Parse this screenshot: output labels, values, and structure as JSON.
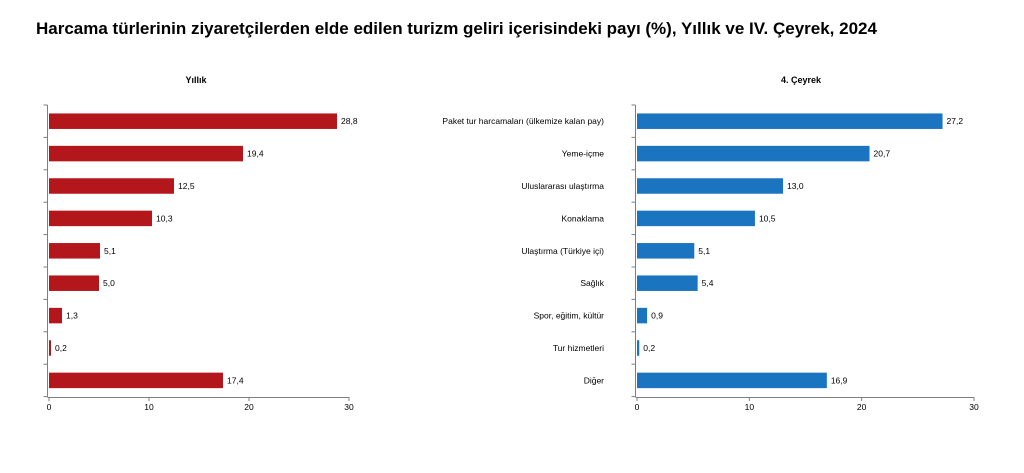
{
  "page": {
    "title": "Harcama türlerinin ziyaretçilerden elde edilen turizm geliri içerisindeki payı (%), Yıllık ve IV. Çeyrek, 2024"
  },
  "chart_data": [
    {
      "type": "bar",
      "orientation": "horizontal",
      "title": "Yıllık",
      "categories": [
        "Paket tur harcamaları (ülkemize kalan pay)",
        "Yeme-içme",
        "Uluslararası ulaştırma",
        "Konaklama",
        "Ulaştırma (Türkiye içi)",
        "Sağlık",
        "Spor, eğitim, kültür",
        "Tur hizmetleri",
        "Diğer"
      ],
      "values": [
        28.8,
        19.4,
        12.5,
        10.3,
        5.1,
        5.0,
        1.3,
        0.2,
        17.4
      ],
      "value_labels": [
        "28,8",
        "19,4",
        "12,5",
        "10,3",
        "5,1",
        "5,0",
        "1,3",
        "0,2",
        "17,4"
      ],
      "xlim": [
        0,
        30
      ],
      "xticks": [
        0,
        10,
        20,
        30
      ],
      "xtick_labels": [
        "0",
        "10",
        "20",
        "30"
      ],
      "grid": false,
      "bar_color": "#b3161b"
    },
    {
      "type": "bar",
      "orientation": "horizontal",
      "title": "4. Çeyrek",
      "categories": [
        "Paket tur harcamaları (ülkemize kalan pay)",
        "Yeme-içme",
        "Uluslararası ulaştırma",
        "Konaklama",
        "Ulaştırma (Türkiye içi)",
        "Sağlık",
        "Spor, eğitim, kültür",
        "Tur hizmetleri",
        "Diğer"
      ],
      "values": [
        27.2,
        20.7,
        13.0,
        10.5,
        5.1,
        5.4,
        0.9,
        0.2,
        16.9
      ],
      "value_labels": [
        "27,2",
        "20,7",
        "13,0",
        "10,5",
        "5,1",
        "5,4",
        "0,9",
        "0,2",
        "16,9"
      ],
      "xlim": [
        0,
        30
      ],
      "xticks": [
        0,
        10,
        20,
        30
      ],
      "xtick_labels": [
        "0",
        "10",
        "20",
        "30"
      ],
      "grid": false,
      "bar_color": "#1a74c0"
    }
  ]
}
